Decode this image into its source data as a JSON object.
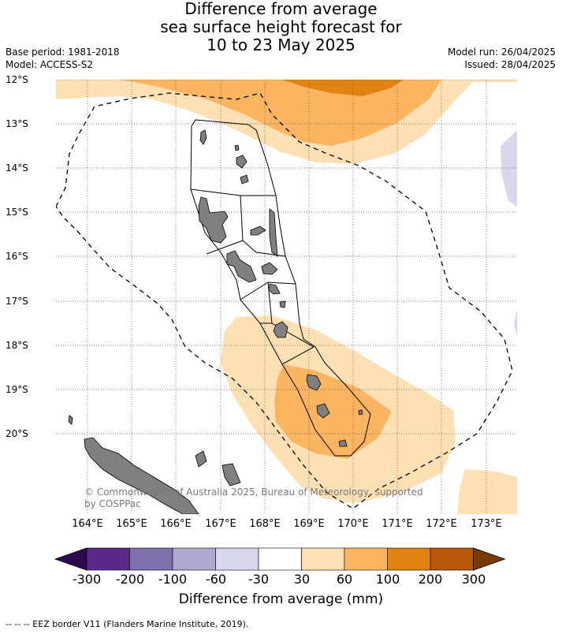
{
  "title": {
    "line1": "Difference from average",
    "line2": "sea surface height forecast for",
    "line3": "10 to 23 May 2025"
  },
  "meta_left": {
    "base_period": "Base period: 1981-2018",
    "model": "Model: ACCESS-S2"
  },
  "meta_right": {
    "model_run": "Model run: 26/04/2025",
    "issued": "Issued: 28/04/2025"
  },
  "lat_labels": [
    "12°S",
    "13°S",
    "14°S",
    "15°S",
    "16°S",
    "17°S",
    "18°S",
    "19°S",
    "20°S"
  ],
  "lon_labels": [
    "164°E",
    "165°E",
    "166°E",
    "167°E",
    "168°E",
    "169°E",
    "170°E",
    "171°E",
    "172°E",
    "173°E"
  ],
  "copyright": {
    "line1": "© Commonwealth of Australia 2025, Bureau of Meteorology, supported",
    "line2": "by COSPPac"
  },
  "colorbar": {
    "labels": [
      "-300",
      "-200",
      "-100",
      "-60",
      "-30",
      "30",
      "60",
      "100",
      "200",
      "300"
    ],
    "colors": [
      "#2d0a4e",
      "#5a2a8a",
      "#8070ae",
      "#b1a8d0",
      "#d8d8ec",
      "#ffffff",
      "#fde0b4",
      "#fbb561",
      "#e08313",
      "#b45708",
      "#7a3a08"
    ],
    "title": "Difference from average (mm)"
  },
  "colors": {
    "light_orange": "#fde0b4",
    "mid_orange": "#fbb561",
    "dark_orange": "#e08313",
    "light_purple": "#d8d8ec",
    "land": "#808080"
  },
  "footnote": "--  --  -- EEZ border V11 (Flanders Marine Institute, 2019)."
}
